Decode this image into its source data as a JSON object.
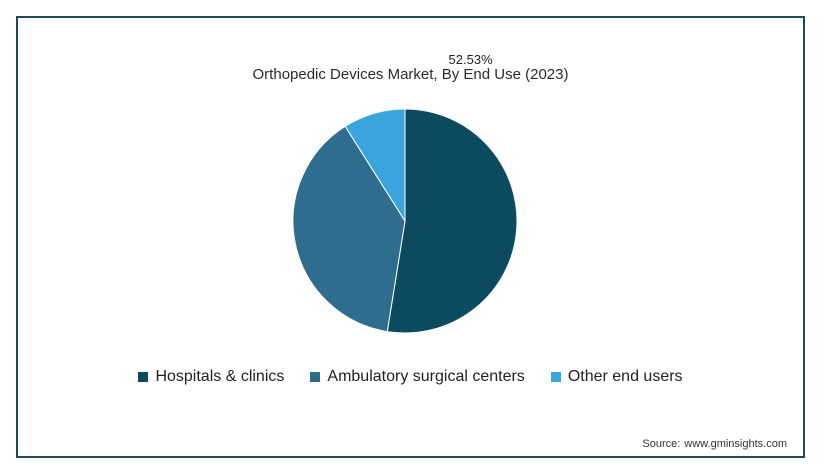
{
  "chart_data": {
    "type": "pie",
    "title": "Orthopedic Devices Market, By End Use (2023)",
    "slices": [
      {
        "label": "Hospitals & clinics",
        "value": 52.53,
        "color": "#0b4a5f",
        "data_label": "52.53%"
      },
      {
        "label": "Ambulatory surgical centers",
        "value": 38.5,
        "color": "#2f6d8e"
      },
      {
        "label": "Other end users",
        "value": 8.97,
        "color": "#3aa5dc"
      }
    ],
    "legend_position": "bottom"
  },
  "source": {
    "label": "Source:",
    "text": "www.gminsights.com"
  }
}
